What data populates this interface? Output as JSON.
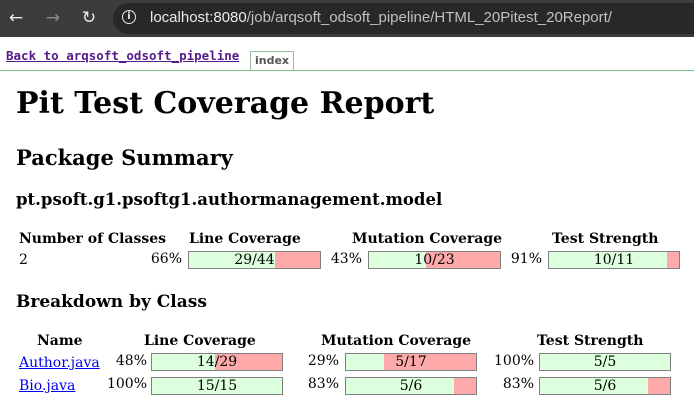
{
  "browser": {
    "url_host": "localhost:8080",
    "url_path": "/job/arqsoft_odsoft_pipeline/HTML_20Pitest_20Report/"
  },
  "nav": {
    "back_label": "Back to arqsoft_odsoft_pipeline",
    "index_tab": "index"
  },
  "report": {
    "title": "Pit Test Coverage Report",
    "package_summary_heading": "Package Summary",
    "package_name": "pt.psoft.g1.psoftg1.authormanagement.model",
    "breakdown_heading": "Breakdown by Class"
  },
  "summary": {
    "headers": {
      "classes": "Number of Classes",
      "line": "Line Coverage",
      "mutation": "Mutation Coverage",
      "strength": "Test Strength"
    },
    "num_classes": "2",
    "line": {
      "percent": "66%",
      "ratio": "29/44",
      "fraction": 0.659
    },
    "mutation": {
      "percent": "43%",
      "ratio": "10/23",
      "fraction": 0.435
    },
    "strength": {
      "percent": "91%",
      "ratio": "10/11",
      "fraction": 0.909
    }
  },
  "breakdown": {
    "headers": {
      "name": "Name",
      "line": "Line Coverage",
      "mutation": "Mutation Coverage",
      "strength": "Test Strength"
    },
    "rows": [
      {
        "name": "Author.java",
        "line": {
          "percent": "48%",
          "ratio": "14/29",
          "fraction": 0.483
        },
        "mutation": {
          "percent": "29%",
          "ratio": "5/17",
          "fraction": 0.294
        },
        "strength": {
          "percent": "100%",
          "ratio": "5/5",
          "fraction": 1.0
        }
      },
      {
        "name": "Bio.java",
        "line": {
          "percent": "100%",
          "ratio": "15/15",
          "fraction": 1.0
        },
        "mutation": {
          "percent": "83%",
          "ratio": "5/6",
          "fraction": 0.833
        },
        "strength": {
          "percent": "83%",
          "ratio": "5/6",
          "fraction": 0.833
        }
      }
    ]
  },
  "colors": {
    "covered": "#ddffdd",
    "missed": "#ffaaaa",
    "chrome_bg": "#3c3c3c",
    "visited_link": "#551a8b",
    "link": "#0000ee"
  },
  "icons": {
    "back": "arrow-left-icon",
    "forward": "arrow-right-icon",
    "reload": "reload-icon",
    "site_info": "info-icon"
  }
}
